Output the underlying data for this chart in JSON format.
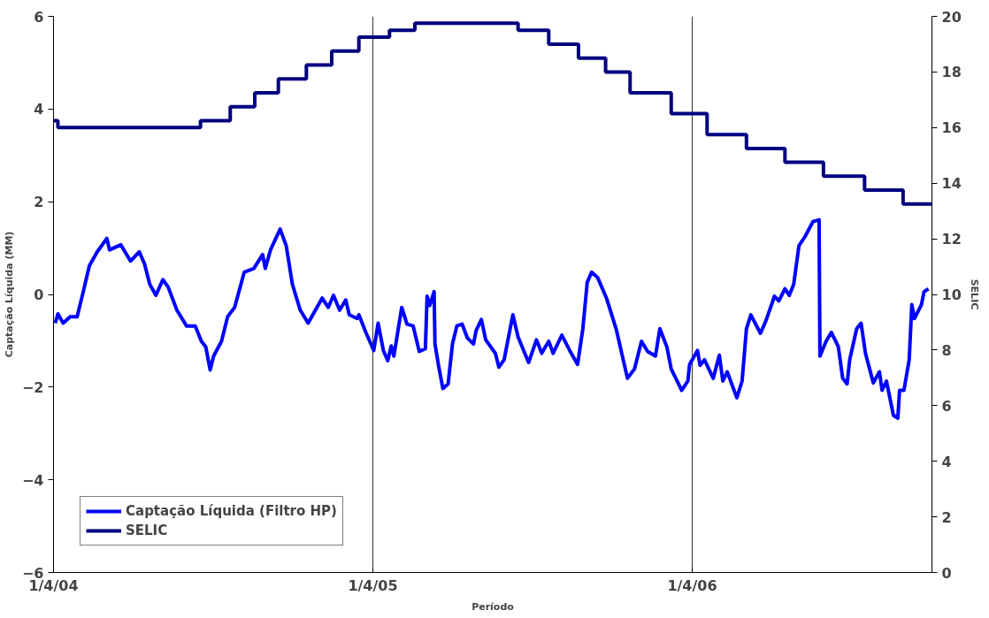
{
  "chart_data": {
    "type": "line",
    "xlabel": "Período",
    "ylabel": "Captação Líquida (MM)",
    "y2label": "SELIC",
    "xlim": [
      "2004-04-01",
      "2006-12-31"
    ],
    "xticks": [
      {
        "value": "2004-04-01",
        "label": "1/4/04"
      },
      {
        "value": "2005-04-01",
        "label": "1/4/05"
      },
      {
        "value": "2006-04-01",
        "label": "1/4/06"
      }
    ],
    "ylim": [
      -6,
      6
    ],
    "yticks": [
      -6,
      -4,
      -2,
      0,
      2,
      4,
      6
    ],
    "y2lim": [
      0,
      20
    ],
    "y2ticks": [
      0,
      2,
      4,
      6,
      8,
      10,
      12,
      14,
      16,
      18,
      20
    ],
    "grid": "x",
    "legend": "bottom left",
    "series": [
      {
        "name": "Captação Líquida (Filtro HP)",
        "color": "#0000ff",
        "x": [
          "2004-04-03",
          "2004-04-06",
          "2004-04-12",
          "2004-04-20",
          "2004-04-28",
          "2004-05-05",
          "2004-05-12",
          "2004-05-21",
          "2004-06-01",
          "2004-06-04",
          "2004-06-17",
          "2004-06-28",
          "2004-07-08",
          "2004-07-14",
          "2004-07-20",
          "2004-07-27",
          "2004-08-04",
          "2004-08-10",
          "2004-08-20",
          "2004-08-31",
          "2004-09-10",
          "2004-09-17",
          "2004-09-22",
          "2004-09-27",
          "2004-10-01",
          "2004-10-10",
          "2004-10-17",
          "2004-10-25",
          "2004-11-05",
          "2004-11-16",
          "2004-11-26",
          "2004-11-29",
          "2004-12-05",
          "2004-12-16",
          "2004-12-23",
          "2004-12-30",
          "2005-01-08",
          "2005-01-17",
          "2005-02-02",
          "2005-02-09",
          "2005-02-15",
          "2005-02-22",
          "2005-03-01",
          "2005-03-05",
          "2005-03-14",
          "2005-03-16",
          "2005-03-24",
          "2005-04-02",
          "2005-04-07",
          "2005-04-13",
          "2005-04-18",
          "2005-04-22",
          "2005-04-25",
          "2005-05-04",
          "2005-05-10",
          "2005-05-17",
          "2005-05-24",
          "2005-05-31",
          "2005-06-02",
          "2005-06-05",
          "2005-06-10",
          "2005-06-11",
          "2005-06-15",
          "2005-06-20",
          "2005-06-26",
          "2005-07-01",
          "2005-07-06",
          "2005-07-12",
          "2005-07-18",
          "2005-07-25",
          "2005-07-28",
          "2005-08-03",
          "2005-08-08",
          "2005-08-19",
          "2005-08-23",
          "2005-08-29",
          "2005-09-08",
          "2005-09-14",
          "2005-09-26",
          "2005-10-05",
          "2005-10-11",
          "2005-10-19",
          "2005-10-24",
          "2005-11-03",
          "2005-11-12",
          "2005-11-21",
          "2005-11-27",
          "2005-12-02",
          "2005-12-07",
          "2005-12-14",
          "2005-12-24",
          "2006-01-04",
          "2006-01-17",
          "2006-01-25",
          "2006-02-02",
          "2006-02-09",
          "2006-02-18",
          "2006-02-23",
          "2006-03-03",
          "2006-03-08",
          "2006-03-20",
          "2006-03-27",
          "2006-03-29",
          "2006-04-07",
          "2006-04-10",
          "2006-04-15",
          "2006-04-25",
          "2006-05-02",
          "2006-05-06",
          "2006-05-11",
          "2006-05-22",
          "2006-05-28",
          "2006-06-02",
          "2006-06-07",
          "2006-06-18",
          "2006-06-24",
          "2006-07-04",
          "2006-07-09",
          "2006-07-16",
          "2006-07-21",
          "2006-07-26",
          "2006-08-01",
          "2006-08-08",
          "2006-08-17",
          "2006-08-24",
          "2006-08-25",
          "2006-09-01",
          "2006-09-07",
          "2006-09-15",
          "2006-09-20",
          "2006-09-25",
          "2006-09-28",
          "2006-10-06",
          "2006-10-11",
          "2006-10-16",
          "2006-10-25",
          "2006-11-01",
          "2006-11-04",
          "2006-11-09",
          "2006-11-17",
          "2006-11-22",
          "2006-11-24",
          "2006-11-29",
          "2006-12-05",
          "2006-12-08",
          "2006-12-11",
          "2006-12-19",
          "2006-12-22",
          "2006-12-27"
        ],
        "values": [
          -0.62,
          -0.42,
          -0.62,
          -0.48,
          -0.48,
          0.06,
          0.62,
          0.92,
          1.21,
          0.96,
          1.07,
          0.72,
          0.92,
          0.66,
          0.22,
          -0.02,
          0.32,
          0.16,
          -0.34,
          -0.68,
          -0.68,
          -1.01,
          -1.13,
          -1.63,
          -1.33,
          -1.01,
          -0.48,
          -0.28,
          0.48,
          0.56,
          0.86,
          0.56,
          0.96,
          1.41,
          1.05,
          0.22,
          -0.34,
          -0.62,
          -0.08,
          -0.28,
          -0.02,
          -0.34,
          -0.12,
          -0.44,
          -0.52,
          -0.44,
          -0.82,
          -1.21,
          -0.62,
          -1.21,
          -1.43,
          -1.11,
          -1.33,
          -0.28,
          -0.64,
          -0.68,
          -1.23,
          -1.17,
          -0.04,
          -0.24,
          0.06,
          -1.07,
          -1.53,
          -2.03,
          -1.93,
          -1.07,
          -0.68,
          -0.64,
          -0.94,
          -1.07,
          -0.78,
          -0.54,
          -0.98,
          -1.27,
          -1.57,
          -1.41,
          -0.44,
          -0.92,
          -1.47,
          -0.98,
          -1.27,
          -1.01,
          -1.27,
          -0.88,
          -1.21,
          -1.51,
          -0.74,
          0.26,
          0.48,
          0.36,
          -0.08,
          -0.74,
          -1.81,
          -1.61,
          -1.01,
          -1.23,
          -1.33,
          -0.74,
          -1.13,
          -1.61,
          -2.07,
          -1.87,
          -1.51,
          -1.21,
          -1.53,
          -1.41,
          -1.81,
          -1.31,
          -1.87,
          -1.67,
          -2.23,
          -1.87,
          -0.74,
          -0.44,
          -0.84,
          -0.58,
          -0.04,
          -0.14,
          0.12,
          -0.02,
          0.22,
          1.05,
          1.25,
          1.57,
          1.61,
          -1.33,
          -1.01,
          -0.82,
          -1.13,
          -1.81,
          -1.93,
          -1.41,
          -0.74,
          -0.62,
          -1.27,
          -1.91,
          -1.67,
          -2.07,
          -1.87,
          -2.61,
          -2.67,
          -2.07,
          -2.07,
          -1.41,
          -0.22,
          -0.52,
          -0.22,
          0.06,
          0.12
        ]
      },
      {
        "name": "SELIC",
        "color": "#000080",
        "type": "step",
        "axis": "y2",
        "x": [
          "2004-04-01",
          "2004-04-06",
          "2004-09-16",
          "2004-10-20",
          "2004-11-17",
          "2004-12-14",
          "2005-01-15",
          "2005-02-13",
          "2005-03-16",
          "2005-04-20",
          "2005-05-19",
          "2005-09-14",
          "2005-10-19",
          "2005-11-22",
          "2005-12-23",
          "2006-01-20",
          "2006-03-08",
          "2006-04-18",
          "2006-06-02",
          "2006-07-16",
          "2006-08-29",
          "2006-10-15",
          "2006-11-28",
          "2006-12-31"
        ],
        "values": [
          16.25,
          16.0,
          16.25,
          16.75,
          17.25,
          17.75,
          18.25,
          18.75,
          19.25,
          19.5,
          19.75,
          19.5,
          19.0,
          18.5,
          18.0,
          17.25,
          16.5,
          15.75,
          15.25,
          14.75,
          14.25,
          13.75,
          13.25,
          13.25
        ]
      }
    ]
  }
}
